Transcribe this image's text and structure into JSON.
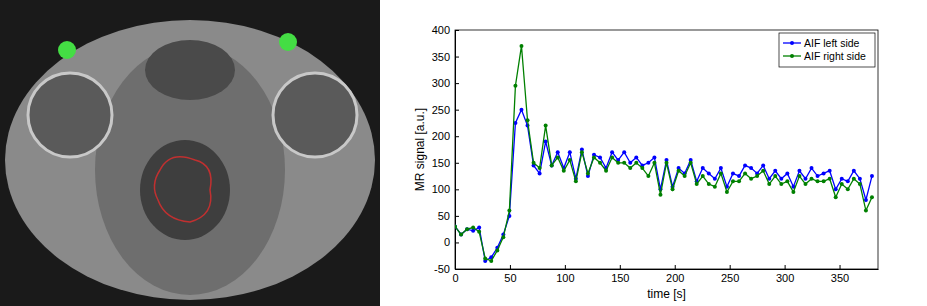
{
  "chart_data": {
    "type": "line",
    "x_label": "time [s]",
    "y_label": "MR signal [a.u.]",
    "x": [
      0,
      5.5,
      11,
      16.5,
      22,
      27.5,
      33,
      38.5,
      44,
      49.5,
      55,
      60.5,
      66,
      71.5,
      77,
      82.5,
      88,
      93.5,
      99,
      104.5,
      110,
      115.5,
      121,
      126.5,
      132,
      137.5,
      143,
      148.5,
      154,
      159.5,
      165,
      170.5,
      176,
      181.5,
      187,
      192.5,
      198,
      203.5,
      209,
      214.5,
      220,
      225.5,
      231,
      236.5,
      242,
      247.5,
      253,
      258.5,
      264,
      269.5,
      275,
      280.5,
      286,
      291.5,
      297,
      302.5,
      308,
      313.5,
      319,
      324.5,
      330,
      335.5,
      341,
      346.5,
      352,
      357.5,
      363,
      368.5,
      374,
      379.5
    ],
    "series": [
      {
        "name": "AIF left side",
        "color": "#0000ff",
        "marker": "o",
        "line_style": "solid",
        "values": [
          30,
          15,
          25,
          22,
          28,
          -35,
          -28,
          -10,
          15,
          50,
          225,
          250,
          220,
          145,
          130,
          190,
          145,
          170,
          140,
          170,
          120,
          175,
          125,
          165,
          160,
          140,
          170,
          155,
          170,
          150,
          160,
          145,
          150,
          160,
          100,
          155,
          105,
          140,
          130,
          155,
          115,
          140,
          130,
          120,
          140,
          105,
          130,
          125,
          145,
          140,
          130,
          145,
          120,
          135,
          120,
          130,
          105,
          135,
          120,
          140,
          125,
          130,
          135,
          100,
          120,
          115,
          135,
          120,
          80,
          125
        ]
      },
      {
        "name": "AIF right side",
        "color": "#008000",
        "marker": "o",
        "line_style": "solid",
        "values": [
          30,
          15,
          25,
          28,
          20,
          -30,
          -35,
          -15,
          10,
          60,
          295,
          370,
          230,
          150,
          140,
          220,
          145,
          160,
          135,
          155,
          115,
          170,
          130,
          160,
          150,
          135,
          160,
          150,
          150,
          140,
          150,
          140,
          125,
          150,
          90,
          150,
          100,
          135,
          125,
          150,
          110,
          125,
          110,
          105,
          130,
          95,
          115,
          115,
          130,
          120,
          125,
          135,
          110,
          125,
          110,
          115,
          95,
          125,
          110,
          120,
          115,
          115,
          120,
          85,
          110,
          100,
          120,
          110,
          60,
          85
        ]
      }
    ],
    "xlim": [
      0,
      385
    ],
    "xticks": [
      0,
      50,
      100,
      150,
      200,
      250,
      300,
      350
    ],
    "ylim": [
      -50,
      400
    ],
    "yticks": [
      -50,
      0,
      50,
      100,
      150,
      200,
      250,
      300,
      350,
      400
    ],
    "grid": false,
    "legend": "upper right"
  }
}
